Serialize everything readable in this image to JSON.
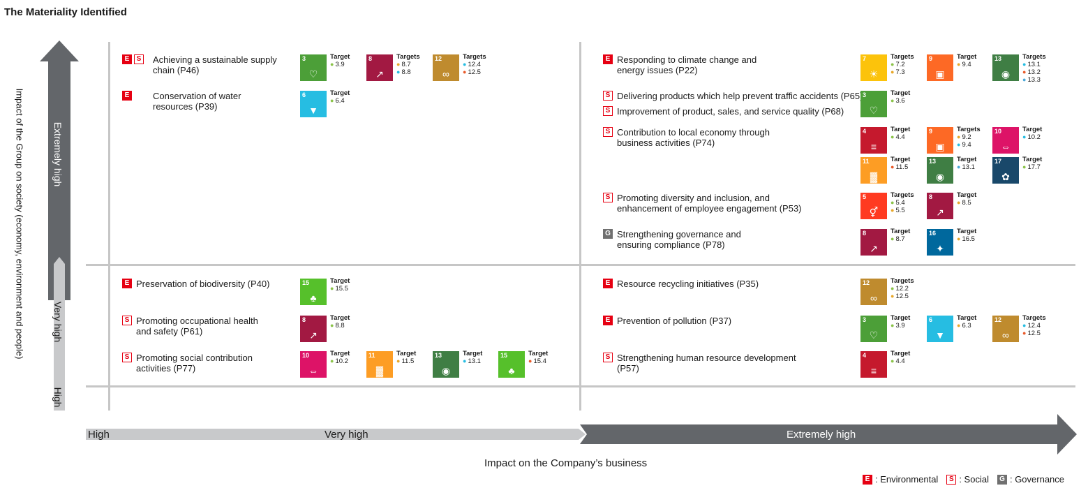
{
  "title": "The Materiality Identified",
  "y_axis": {
    "label": "Impact of the Group on society (economy, environment and people)",
    "levels": [
      "Extremely high",
      "Very high",
      "High"
    ]
  },
  "x_axis": {
    "label": "Impact on the Company’s business",
    "levels": [
      "High",
      "Very high",
      "Extremely high"
    ]
  },
  "legend": [
    {
      "code": "E",
      "label": ": Environmental"
    },
    {
      "code": "S",
      "label": ": Social"
    },
    {
      "code": "G",
      "label": ": Governance"
    }
  ],
  "sdg_colors": {
    "3": "#4c9f38",
    "4": "#c5192d",
    "5": "#ff3a21",
    "6": "#26bde2",
    "7": "#fcc30b",
    "8": "#a21942",
    "9": "#fd6925",
    "10": "#dd1367",
    "11": "#fd9d24",
    "12": "#bf8b2e",
    "13": "#3f7e44",
    "15": "#56c02b",
    "16": "#00689d",
    "17": "#19486a"
  },
  "sdg_icons": {
    "3": "heartbeat-icon",
    "4": "book-icon",
    "5": "gender-icon",
    "6": "water-drop-icon",
    "7": "sun-icon",
    "8": "growth-chart-icon",
    "9": "cubes-icon",
    "10": "equality-icon",
    "11": "city-icon",
    "12": "infinity-icon",
    "13": "eye-earth-icon",
    "15": "tree-icon",
    "16": "dove-icon",
    "17": "flower-icon"
  },
  "items": [
    {
      "badges": [
        "E",
        "S"
      ],
      "line1": "Achieving a sustainable supply",
      "line2": "chain (P46)",
      "sdgs": [
        {
          "goal": "3",
          "label": "Target",
          "targets": [
            "3.9"
          ]
        },
        {
          "goal": "8",
          "label": "Targets",
          "targets": [
            "8.7",
            "8.8"
          ]
        },
        {
          "goal": "12",
          "label": "Targets",
          "targets": [
            "12.4",
            "12.5"
          ]
        }
      ]
    },
    {
      "badges": [
        "E"
      ],
      "line1": "Conservation of water",
      "line2": "resources (P39)",
      "sdgs": [
        {
          "goal": "6",
          "label": "Target",
          "targets": [
            "6.4"
          ]
        }
      ]
    },
    {
      "badges": [
        "E"
      ],
      "line1": "Responding to climate change and",
      "line2": "energy issues (P22)",
      "sdgs": [
        {
          "goal": "7",
          "label": "Targets",
          "targets": [
            "7.2",
            "7.3"
          ]
        },
        {
          "goal": "9",
          "label": "Target",
          "targets": [
            "9.4"
          ]
        },
        {
          "goal": "13",
          "label": "Targets",
          "targets": [
            "13.1",
            "13.2",
            "13.3"
          ]
        }
      ]
    },
    {
      "badges": [
        "S"
      ],
      "line1": "Delivering products which help prevent traffic accidents (P65)",
      "line2": "",
      "sdgs": [
        {
          "goal": "3",
          "label": "Target",
          "targets": [
            "3.6"
          ]
        }
      ]
    },
    {
      "badges": [
        "S"
      ],
      "line1": "Improvement of product, sales, and service quality (P68)",
      "line2": "",
      "sdgs": []
    },
    {
      "badges": [
        "S"
      ],
      "line1": "Contribution to local economy through",
      "line2": "business activities (P74)",
      "sdgs": [
        {
          "goal": "4",
          "label": "Target",
          "targets": [
            "4.4"
          ]
        },
        {
          "goal": "9",
          "label": "Targets",
          "targets": [
            "9.2",
            "9.4"
          ]
        },
        {
          "goal": "10",
          "label": "Target",
          "targets": [
            "10.2"
          ]
        },
        {
          "goal": "11",
          "label": "Target",
          "targets": [
            "11.5"
          ]
        },
        {
          "goal": "13",
          "label": "Target",
          "targets": [
            "13.1"
          ]
        },
        {
          "goal": "17",
          "label": "Target",
          "targets": [
            "17.7"
          ]
        }
      ]
    },
    {
      "badges": [
        "S"
      ],
      "line1": "Promoting diversity and inclusion, and",
      "line2": "enhancement of employee engagement (P53)",
      "sdgs": [
        {
          "goal": "5",
          "label": "Targets",
          "targets": [
            "5.4",
            "5.5"
          ]
        },
        {
          "goal": "8",
          "label": "Target",
          "targets": [
            "8.5"
          ]
        }
      ]
    },
    {
      "badges": [
        "G"
      ],
      "line1": "Strengthening governance and",
      "line2": "ensuring compliance (P78)",
      "sdgs": [
        {
          "goal": "8",
          "label": "Target",
          "targets": [
            "8.7"
          ]
        },
        {
          "goal": "16",
          "label": "Target",
          "targets": [
            "16.5"
          ]
        }
      ]
    },
    {
      "badges": [
        "E"
      ],
      "line1": "Preservation of biodiversity (P40)",
      "line2": "",
      "sdgs": [
        {
          "goal": "15",
          "label": "Target",
          "targets": [
            "15.5"
          ]
        }
      ]
    },
    {
      "badges": [
        "S"
      ],
      "line1": "Promoting occupational health",
      "line2": "and safety (P61)",
      "sdgs": [
        {
          "goal": "8",
          "label": "Target",
          "targets": [
            "8.8"
          ]
        }
      ]
    },
    {
      "badges": [
        "S"
      ],
      "line1": "Promoting social contribution",
      "line2": "activities (P77)",
      "sdgs": [
        {
          "goal": "10",
          "label": "Target",
          "targets": [
            "10.2"
          ]
        },
        {
          "goal": "11",
          "label": "Target",
          "targets": [
            "11.5"
          ]
        },
        {
          "goal": "13",
          "label": "Target",
          "targets": [
            "13.1"
          ]
        },
        {
          "goal": "15",
          "label": "Target",
          "targets": [
            "15.4"
          ]
        }
      ]
    },
    {
      "badges": [
        "E"
      ],
      "line1": "Resource recycling initiatives (P35)",
      "line2": "",
      "sdgs": [
        {
          "goal": "12",
          "label": "Targets",
          "targets": [
            "12.2",
            "12.5"
          ]
        }
      ]
    },
    {
      "badges": [
        "E"
      ],
      "line1": "Prevention of pollution (P37)",
      "line2": "",
      "sdgs": [
        {
          "goal": "3",
          "label": "Target",
          "targets": [
            "3.9"
          ]
        },
        {
          "goal": "6",
          "label": "Target",
          "targets": [
            "6.3"
          ]
        },
        {
          "goal": "12",
          "label": "Targets",
          "targets": [
            "12.4",
            "12.5"
          ]
        }
      ]
    },
    {
      "badges": [
        "S"
      ],
      "line1": "Strengthening human resource development",
      "line2": "(P57)",
      "sdgs": [
        {
          "goal": "4",
          "label": "Target",
          "targets": [
            "4.4"
          ]
        }
      ]
    }
  ]
}
